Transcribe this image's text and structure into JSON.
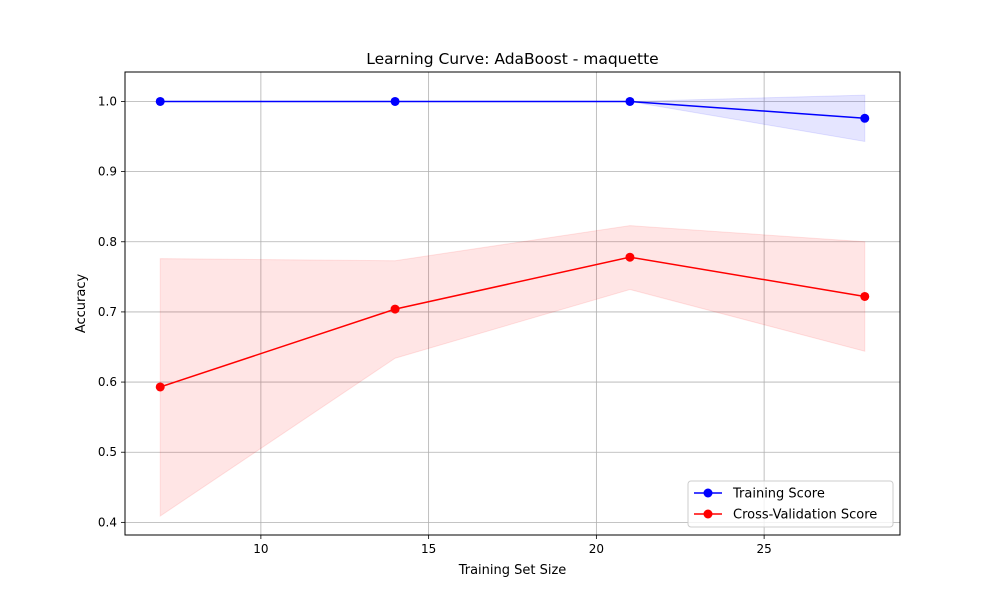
{
  "chart_data": {
    "type": "line",
    "title": "Learning Curve: AdaBoost - maquette",
    "xlabel": "Training Set Size",
    "ylabel": "Accuracy",
    "xlim": [
      5.95,
      29.05
    ],
    "ylim": [
      0.382,
      1.042
    ],
    "xticks": [
      10,
      15,
      20,
      25
    ],
    "yticks": [
      0.4,
      0.5,
      0.6,
      0.7,
      0.8,
      0.9,
      1.0
    ],
    "xtick_labels": [
      "10",
      "15",
      "20",
      "25"
    ],
    "ytick_labels": [
      "0.4",
      "0.5",
      "0.6",
      "0.7",
      "0.8",
      "0.9",
      "1.0"
    ],
    "grid": true,
    "legend_position": "lower-right",
    "x": [
      7,
      14,
      21,
      28
    ],
    "series": [
      {
        "name": "Training Score",
        "color": "#0000ff",
        "values": [
          1.0,
          1.0,
          1.0,
          0.976
        ],
        "band_lower": [
          1.0,
          1.0,
          1.0,
          0.943
        ],
        "band_upper": [
          1.0,
          1.0,
          1.0,
          1.009
        ],
        "band_color": "#0000ff"
      },
      {
        "name": "Cross-Validation Score",
        "color": "#ff0000",
        "values": [
          0.593,
          0.704,
          0.778,
          0.722
        ],
        "band_lower": [
          0.409,
          0.634,
          0.732,
          0.644
        ],
        "band_upper": [
          0.776,
          0.773,
          0.823,
          0.8
        ],
        "band_color": "#ff0000"
      }
    ]
  }
}
